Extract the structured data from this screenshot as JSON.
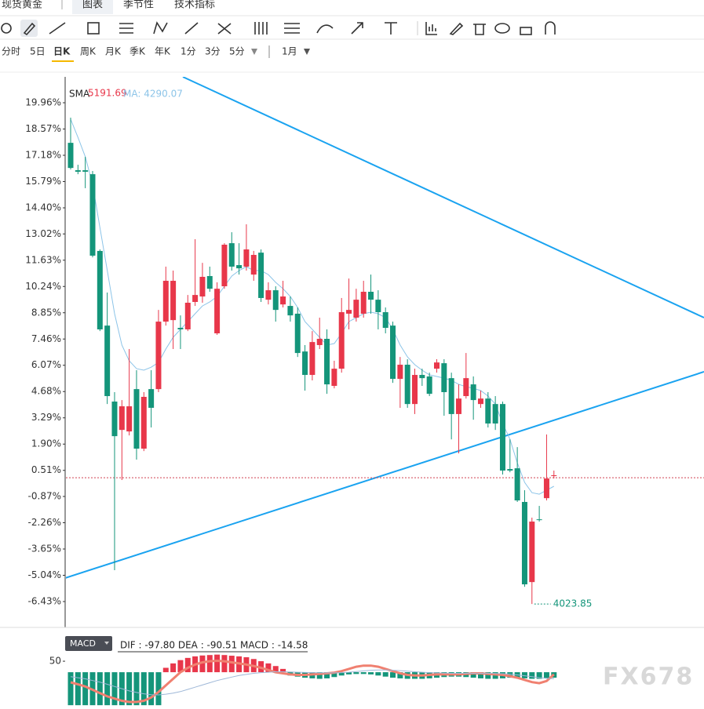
{
  "ui": {
    "tabs": [
      "现货黄金",
      "图表",
      "季节性",
      "技术指标"
    ],
    "periods": [
      "分时",
      "5日",
      "日K",
      "周K",
      "月K",
      "季K",
      "年K",
      "1分",
      "3分",
      "5分"
    ],
    "range": "1月",
    "watermark": "FX678"
  },
  "chart_data": [
    {
      "type": "candlestick",
      "legend": [
        "SMA",
        "5191.69",
        "MA: 4290.07"
      ],
      "annotation": "4023.85",
      "open": [
        17.84,
        16.39,
        16.39,
        16.18,
        12.12,
        8.17,
        4.15,
        2.65,
        2.57,
        4.81,
        1.66,
        4.81,
        4.81,
        8.38,
        8.46,
        8.05,
        7.97,
        9.42,
        9.71,
        10.79,
        7.76,
        10.25,
        12.53,
        11.37,
        11.29,
        10.87,
        12.03,
        9.54,
        10.04,
        9.29,
        9.21,
        8.8,
        6.8,
        5.56,
        7.14,
        7.47,
        4.98,
        5.89,
        8.8,
        8.59,
        8.8,
        9.96,
        9.54,
        8.88,
        8.17,
        5.35,
        6.1,
        4.02,
        5.56,
        5.48,
        5.89,
        6.18,
        5.39,
        3.49,
        4.44,
        5.06,
        4.02,
        4.31,
        4.02,
        4.02,
        0.58,
        0.62,
        -1.16,
        -5.4,
        -2.08,
        -0.96,
        0.25
      ],
      "high": [
        19.17,
        16.68,
        17.1,
        16.35,
        12.2,
        9.92,
        4.65,
        4.23,
        6.93,
        5.81,
        4.65,
        5.81,
        9.0,
        11.29,
        11.08,
        8.71,
        9.79,
        12.74,
        11.49,
        11.29,
        10.46,
        12.53,
        13.11,
        12.53,
        13.53,
        12.12,
        12.2,
        10.46,
        10.25,
        10.54,
        9.71,
        9.13,
        7.14,
        7.88,
        8.59,
        7.97,
        6.31,
        9.63,
        10.66,
        10.12,
        10.54,
        10.87,
        10.04,
        9.13,
        8.38,
        6.51,
        6.39,
        5.89,
        5.89,
        5.68,
        6.39,
        6.39,
        5.68,
        5.06,
        6.72,
        5.48,
        4.73,
        4.65,
        4.44,
        4.15,
        2.15,
        1.74,
        -0.54,
        -1.99,
        -1.37,
        2.41,
        0.5
      ],
      "low": [
        16.43,
        16.18,
        15.44,
        11.78,
        7.88,
        4.02,
        -4.77,
        0.0,
        2.36,
        1.08,
        1.53,
        2.78,
        4.65,
        8.17,
        6.93,
        6.93,
        7.88,
        9.21,
        9.38,
        9.96,
        7.68,
        10.12,
        11.08,
        10.87,
        11.08,
        10.54,
        9.42,
        9.29,
        8.38,
        9.13,
        8.38,
        6.51,
        4.73,
        5.27,
        6.93,
        4.56,
        4.85,
        5.68,
        7.97,
        8.38,
        8.59,
        8.8,
        7.97,
        7.76,
        5.14,
        3.82,
        3.82,
        3.49,
        4.98,
        4.44,
        5.68,
        3.4,
        2.15,
        1.41,
        4.31,
        3.19,
        3.82,
        2.78,
        2.65,
        0.29,
        0.41,
        -1.16,
        -5.65,
        -6.56,
        -2.2,
        -1.08,
        0.08
      ],
      "close": [
        16.51,
        16.31,
        16.31,
        11.87,
        7.97,
        4.44,
        2.32,
        3.9,
        3.9,
        1.66,
        4.4,
        3.82,
        8.38,
        10.54,
        10.54,
        7.97,
        9.38,
        9.79,
        10.75,
        10.12,
        10.12,
        12.45,
        11.29,
        11.2,
        12.2,
        11.91,
        9.63,
        10.04,
        9.0,
        9.71,
        8.71,
        6.72,
        5.56,
        7.3,
        7.47,
        5.06,
        5.89,
        8.88,
        9.0,
        9.54,
        9.96,
        9.54,
        8.88,
        8.05,
        5.35,
        6.1,
        4.02,
        5.56,
        5.39,
        4.56,
        6.22,
        4.65,
        3.49,
        4.31,
        5.39,
        4.23,
        4.31,
        2.99,
        2.99,
        0.5,
        0.5,
        -1.08,
        -5.52,
        -2.2,
        -2.12,
        0.08,
        0.25
      ],
      "up_color": "#e8374a",
      "down_color": "#14957a",
      "series": [
        {
          "name": "MA",
          "color": "#8cc4e8",
          "values": [
            19.09,
            18.13,
            17.1,
            15.64,
            13.36,
            11.08,
            8.8,
            7.14,
            6.31,
            5.89,
            5.81,
            5.97,
            6.22,
            6.93,
            7.55,
            7.97,
            8.38,
            8.8,
            9.21,
            9.42,
            9.71,
            10.25,
            10.79,
            11.08,
            11.29,
            11.08,
            11.08,
            10.87,
            10.46,
            10.12,
            9.71,
            9.13,
            8.38,
            7.97,
            7.55,
            7.14,
            7.22,
            7.76,
            8.38,
            8.59,
            8.8,
            8.88,
            8.8,
            8.59,
            7.97,
            7.14,
            6.51,
            6.1,
            5.81,
            5.56,
            5.48,
            5.39,
            5.27,
            5.06,
            4.94,
            4.85,
            4.73,
            4.44,
            4.02,
            2.99,
            2.15,
            0.91,
            -0.13,
            -0.67,
            -0.75,
            -0.54,
            -0.33
          ]
        }
      ],
      "reference_line": 0.12,
      "reference_color": "#d04050",
      "ylim": [
        -7.8,
        21.33
      ],
      "yticks": [
        {
          "value": 19.96,
          "label": "19.96%"
        },
        {
          "value": 18.57,
          "label": "18.57%"
        },
        {
          "value": 17.18,
          "label": "17.18%"
        },
        {
          "value": 15.79,
          "label": "15.79%"
        },
        {
          "value": 14.4,
          "label": "14.40%"
        },
        {
          "value": 13.02,
          "label": "13.02%"
        },
        {
          "value": 11.63,
          "label": "11.63%"
        },
        {
          "value": 10.24,
          "label": "10.24%"
        },
        {
          "value": 8.85,
          "label": "8.85%"
        },
        {
          "value": 7.46,
          "label": "7.46%"
        },
        {
          "value": 6.07,
          "label": "6.07%"
        },
        {
          "value": 4.68,
          "label": "4.68%"
        },
        {
          "value": 3.29,
          "label": "3.29%"
        },
        {
          "value": 1.9,
          "label": "1.90%"
        },
        {
          "value": 0.51,
          "label": "0.51%"
        },
        {
          "value": -0.87,
          "label": "-0.87%"
        },
        {
          "value": -2.26,
          "label": "-2.26%"
        },
        {
          "value": -3.65,
          "label": "-3.65%"
        },
        {
          "value": -5.04,
          "label": "-5.04%"
        },
        {
          "value": -6.43,
          "label": "-6.43%"
        }
      ],
      "grid": false
    },
    {
      "type": "macd",
      "title": "MACD",
      "subtitle": "DIF : -97.80   DEA : -90.51   MACD : -14.58",
      "histogram": [
        -150,
        -150,
        -150,
        -150,
        -150,
        -150,
        -150,
        -150,
        -150,
        -150,
        -150,
        -150,
        -150,
        20,
        40,
        55,
        65,
        72,
        76,
        78,
        80,
        78,
        75,
        72,
        68,
        60,
        50,
        40,
        28,
        15,
        -15,
        -20,
        -25,
        -28,
        -30,
        -28,
        -22,
        -15,
        -10,
        -8,
        -8,
        -10,
        -15,
        -20,
        -25,
        -28,
        -30,
        -30,
        -30,
        -28,
        -25,
        -22,
        -20,
        -20,
        -22,
        -25,
        -28,
        -30,
        -30,
        -28,
        -25,
        -25,
        -28,
        -30,
        -30,
        -28,
        -25
      ],
      "up_color": "#e8374a",
      "down_color": "#14957a",
      "series": [
        {
          "name": "DIF",
          "color": "#f08070",
          "values": [
            -46,
            -55,
            -65,
            -80,
            -95,
            -110,
            -120,
            -130,
            -135,
            -135,
            -130,
            -115,
            -90,
            -60,
            -30,
            0,
            20,
            35,
            45,
            50,
            52,
            50,
            45,
            40,
            35,
            28,
            20,
            10,
            0,
            -5,
            -10,
            -12,
            -12,
            -10,
            -8,
            -5,
            -2,
            5,
            15,
            25,
            30,
            30,
            25,
            15,
            5,
            -5,
            -12,
            -15,
            -15,
            -12,
            -10,
            -10,
            -10,
            -10,
            -8,
            -5,
            -5,
            -8,
            -10,
            -12,
            -18,
            -25,
            -35,
            -45,
            -50,
            -40,
            -10
          ]
        },
        {
          "name": "DEA",
          "color": "#9fb8d8",
          "values": [
            -20,
            -25,
            -30,
            -38,
            -45,
            -55,
            -65,
            -75,
            -85,
            -92,
            -98,
            -102,
            -103,
            -100,
            -95,
            -88,
            -78,
            -68,
            -58,
            -48,
            -38,
            -30,
            -22,
            -15,
            -10,
            -5,
            -2,
            0,
            2,
            2,
            1,
            0,
            -1,
            -2,
            -3,
            -3,
            -3,
            -2,
            0,
            3,
            6,
            9,
            10,
            10,
            9,
            7,
            5,
            2,
            0,
            -2,
            -3,
            -4,
            -5,
            -5,
            -5,
            -5,
            -5,
            -5,
            -6,
            -7,
            -9,
            -12,
            -16,
            -20,
            -25,
            -28,
            -30
          ]
        }
      ],
      "ylim": [
        -153,
        175
      ],
      "yticks": [
        50
      ],
      "tick_color": "#e8374a"
    }
  ]
}
